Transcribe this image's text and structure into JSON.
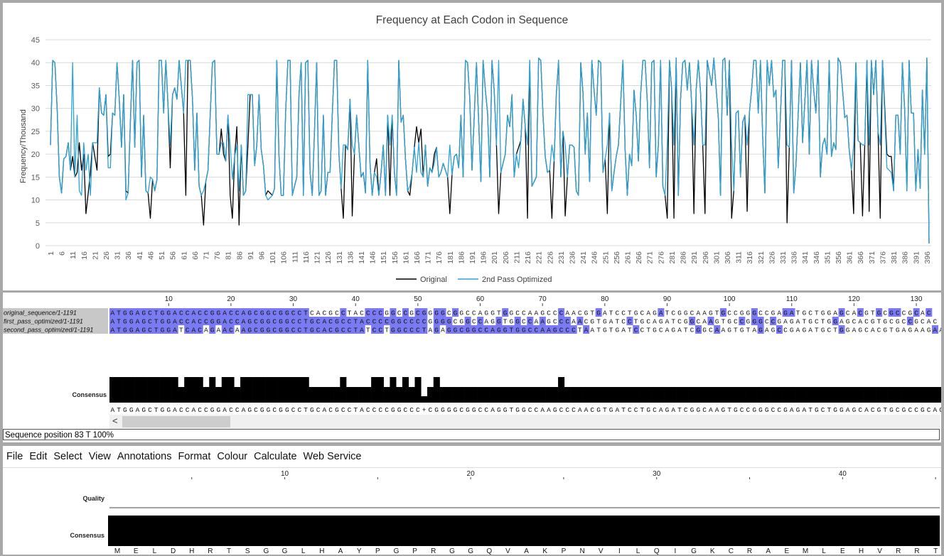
{
  "chart": {
    "title": "Frequency at Each Codon in Sequence",
    "ylabel": "Frequency/Thousand",
    "legend": [
      "Original",
      "2nd Pass Optimized"
    ],
    "colors": {
      "original": "#000000",
      "optimized": "#2ea3d6"
    }
  },
  "chart_data": {
    "type": "line",
    "title": "Frequency at Each Codon in Sequence",
    "xlabel": "",
    "ylabel": "Frequency/Thousand",
    "ylim": [
      0,
      45
    ],
    "yticks": [
      0,
      5,
      10,
      15,
      20,
      25,
      30,
      35,
      40,
      45
    ],
    "x_range": [
      1,
      397
    ],
    "x_tick_step": 5,
    "grid": "horizontal",
    "legend_position": "bottom",
    "series": [
      {
        "name": "Original",
        "color": "#000000",
        "values": [
          22,
          40.5,
          40,
          30,
          15,
          11.5,
          19,
          19.5,
          22.5,
          16.5,
          19.5,
          15,
          16,
          22.5,
          16.5,
          20,
          7,
          11.5,
          16,
          22.5,
          16.5,
          34.5,
          29,
          28.5,
          33,
          19.5,
          20,
          29,
          28.5,
          40,
          32,
          21.5,
          33,
          12,
          11.5,
          27,
          40.5,
          21.5,
          40,
          40.5,
          15,
          28.5,
          12,
          11.5,
          6,
          14.5,
          12,
          14.5,
          40.5,
          40.5,
          29,
          40.5,
          30.5,
          17,
          33,
          34.5,
          32,
          40.5,
          29,
          11,
          40.5,
          40.5,
          32,
          16.5,
          29,
          13,
          11,
          4.5,
          14,
          16.5,
          28.5,
          40,
          40.5,
          20,
          20,
          25.5,
          20,
          18.5,
          28.5,
          11,
          6,
          19.5,
          26,
          4.5,
          22,
          11,
          12,
          22,
          33,
          33,
          17.5,
          22,
          33,
          21,
          17.5,
          11,
          12,
          11,
          12.5,
          40.5,
          19.5,
          11,
          11,
          29,
          40.5,
          40.5,
          11,
          13,
          15,
          33,
          40,
          11,
          40,
          40.5,
          16,
          11,
          25,
          40,
          11,
          12,
          28.5,
          11,
          16,
          16,
          28.5,
          40.5,
          40.5,
          20,
          12.5,
          6,
          22,
          21,
          32,
          6.5,
          20,
          28.5,
          15,
          16,
          11.5,
          40.5,
          18,
          11,
          16,
          19,
          11,
          16,
          22,
          11,
          28.5,
          11,
          28.5,
          16,
          11,
          40.5,
          27,
          28.5,
          19,
          12,
          11,
          16,
          21.5,
          26,
          22.5,
          25.5,
          15,
          22,
          13,
          17,
          16,
          20,
          21.5,
          15,
          16,
          18,
          15,
          7,
          15.5,
          19.5,
          20,
          17,
          28.5,
          15,
          40.5,
          40,
          32,
          16.5,
          28.5,
          40,
          27,
          14,
          40.5,
          34,
          29,
          15,
          40.5,
          34,
          22,
          7,
          16,
          18,
          20,
          28.5,
          26,
          33,
          15,
          20,
          21.5,
          23,
          32,
          26,
          6,
          40.5,
          13,
          15,
          41,
          40.5,
          28.5,
          19.5,
          16,
          16.5,
          6,
          18.5,
          33,
          40.5,
          15,
          25,
          6.5,
          15,
          22,
          22,
          21.5,
          12,
          11,
          40,
          33.5,
          20,
          29,
          14,
          40.5,
          34,
          28.5,
          40.5,
          40,
          16,
          19,
          7,
          29,
          12,
          16,
          19.5,
          22,
          40.5,
          21,
          11,
          20,
          17.5,
          34,
          28.5,
          18.5,
          33,
          40.5,
          40.5,
          31.5,
          17,
          40,
          40.5,
          15,
          22,
          40.5,
          13,
          11,
          6,
          40.5,
          34,
          6,
          41,
          11,
          32,
          40,
          40.5,
          34,
          40,
          31,
          7,
          34,
          40.5,
          33.5,
          22,
          7,
          40.5,
          35,
          41,
          34.5,
          28,
          11,
          40.5,
          41,
          28.5,
          40.5,
          6,
          12,
          29,
          29.5,
          15,
          27,
          28.5,
          7.5,
          29,
          34,
          40.5,
          40.5,
          29,
          40.5,
          24,
          11.5,
          40.5,
          35,
          40.5,
          32.5,
          34,
          17,
          28.5,
          40.5,
          40.5,
          5,
          21.5,
          40.5,
          11.5,
          17.5,
          40,
          22.5,
          31.5,
          40.5,
          20,
          40.5,
          34,
          29,
          40.5,
          15,
          22,
          23.5,
          20,
          40.5,
          19.5,
          22.5,
          21,
          41,
          40,
          34,
          28,
          28.5,
          21,
          16.5,
          7,
          40,
          23,
          22.5,
          6.5,
          22,
          40.5,
          7.5,
          40.5,
          33,
          40.5,
          25,
          6,
          40.5,
          20,
          19.5,
          19.5,
          12,
          28.5,
          28.5,
          20,
          40,
          29.5,
          12,
          40.5,
          29,
          29,
          12,
          21,
          12.5,
          34,
          20,
          41,
          0.5
        ]
      },
      {
        "name": "2nd Pass Optimized",
        "color": "#2ea3d6",
        "values": [
          22,
          40.5,
          40,
          30,
          15,
          11.5,
          19,
          19.5,
          22.5,
          16.5,
          40,
          15,
          28.5,
          12,
          11,
          22.5,
          16.5,
          20,
          11,
          22.5,
          22.5,
          34.5,
          29,
          28.5,
          33,
          17,
          17,
          29,
          28.5,
          40,
          32,
          21.5,
          33,
          10,
          11.5,
          27,
          40.5,
          21.5,
          40,
          40.5,
          15,
          28.5,
          12,
          11.5,
          15,
          14.5,
          12,
          14.5,
          40.5,
          40.5,
          29,
          40.5,
          30.5,
          22,
          33,
          34.5,
          32,
          40.5,
          29,
          40.5,
          40.5,
          40.5,
          32,
          16.5,
          29,
          13,
          11,
          12,
          14,
          16.5,
          28.5,
          40,
          40.5,
          20,
          20,
          22.5,
          22.5,
          18.5,
          28.5,
          22,
          14.5,
          19.5,
          22,
          12,
          22,
          11,
          12,
          33,
          33,
          33,
          17.5,
          22,
          33,
          21,
          17.5,
          11,
          10,
          11,
          12.5,
          40.5,
          19.5,
          11,
          11,
          29,
          40.5,
          40.5,
          11,
          13,
          15,
          33,
          40,
          11,
          40,
          40.5,
          16,
          11,
          25,
          40,
          11,
          12,
          28.5,
          11,
          16,
          16,
          28.5,
          40.5,
          40.5,
          20,
          12.5,
          22,
          22,
          21,
          32,
          22,
          20,
          28.5,
          15,
          16,
          11.5,
          40.5,
          18,
          11,
          16,
          15,
          11,
          16,
          22,
          11,
          28.5,
          22,
          28.5,
          16,
          11,
          40.5,
          27,
          28.5,
          19,
          12,
          13,
          16,
          21.5,
          16,
          22.5,
          16,
          15,
          22,
          13,
          17,
          16,
          18,
          21.5,
          15,
          16,
          18,
          15,
          22,
          15.5,
          19.5,
          20,
          17,
          28.5,
          15,
          40.5,
          40,
          32,
          16.5,
          28.5,
          40,
          27,
          14,
          40.5,
          34,
          29,
          15,
          40.5,
          34,
          22,
          40.5,
          16,
          18,
          20,
          28.5,
          26,
          33,
          15,
          20,
          17,
          23,
          32,
          26,
          22,
          40.5,
          13,
          15,
          41,
          40.5,
          28.5,
          19.5,
          16,
          16.5,
          22,
          18.5,
          33,
          40.5,
          15,
          25,
          22,
          15,
          22,
          22,
          21.5,
          12,
          11,
          40,
          33.5,
          20,
          29,
          14,
          40.5,
          34,
          28.5,
          40.5,
          40,
          16,
          19,
          22,
          29,
          12,
          16,
          19.5,
          22,
          40.5,
          21,
          11,
          20,
          17.5,
          34,
          28.5,
          18.5,
          33,
          40.5,
          40.5,
          31.5,
          17,
          40,
          40.5,
          15,
          22,
          40.5,
          13,
          11,
          22,
          40.5,
          34,
          22,
          41,
          11,
          32,
          40,
          40.5,
          34,
          40,
          31,
          22,
          34,
          40.5,
          33.5,
          22,
          22,
          40.5,
          35,
          41,
          34.5,
          28,
          11,
          40.5,
          41,
          28.5,
          40.5,
          22,
          12,
          29,
          29.5,
          15,
          27,
          28.5,
          22,
          29,
          34,
          40.5,
          40.5,
          29,
          40.5,
          24,
          11.5,
          40.5,
          35,
          40.5,
          32.5,
          34,
          17,
          28.5,
          40.5,
          40.5,
          22,
          21.5,
          40.5,
          11.5,
          17.5,
          40,
          22.5,
          31.5,
          40.5,
          20,
          40.5,
          34,
          29,
          40.5,
          15,
          22,
          23.5,
          20,
          40.5,
          19.5,
          22.5,
          21,
          41,
          40,
          34,
          28,
          28.5,
          21,
          16.5,
          22,
          40,
          23,
          22.5,
          22,
          22,
          40.5,
          22,
          40.5,
          33,
          40.5,
          25,
          22,
          40.5,
          17,
          16.5,
          16,
          12,
          28.5,
          28.5,
          20,
          40,
          29.5,
          12,
          40.5,
          29,
          29,
          12,
          21,
          12.5,
          34,
          20,
          41,
          0.5
        ]
      }
    ]
  },
  "alignment": {
    "ruler_ticks": [
      "10",
      "20",
      "30",
      "40",
      "50",
      "60",
      "70",
      "80",
      "90",
      "100",
      "110",
      "120",
      "130"
    ],
    "rows": [
      {
        "name": "original_sequence/1-1191",
        "seq": "ATGGAGCTGGACCACCGGACCAGCGGCGGCCTCACGCCTACCCCGGCCGCGGGGCGGCCAGGTGGCCAAGCCCAACGTGATCCTGCAGATCGGCAAGTGCCGGGCCGAGATGCTGGAGCACGTGCGCCGCAC"
      },
      {
        "name": "first_pass_optimized/1-1191",
        "seq": "ATGGAGCTGGACCACCGGACCAGCGGCGGCCTGCACGCCTACCCCGGCCCCGGGGCGGCCAGGTGGCCAAGCCCAACGTGATCCTGCAGATCGGCAAGTGCCGGGCCGAGATGCTGGAGCACGTGCGCCGCAC"
      },
      {
        "name": "second_pass_optimized/1-1191",
        "seq": "ATGGAGCTGGATCACAGAACAAGCGGCGGCCTGCACGCCTATCCTGGCCCTAGAGGCGGCCAGGTGGCCAAGCCCTAATGTGATCCTGCAGATCGGCAAGTGTAGAGCCGAGATGCTGGAGCACGTGAGAAGAAC"
      }
    ],
    "consensus_label": "Consensus",
    "consensus_seq": "ATGGAGCTGGACCACCGGACCAGCGGCGGCCTGCACGCCTACCCCGGCCC+CGGGGCGGCCAGGTGGCCAAGCCCAACGTGATCCTGCAGATCGGCAAGTGCCGGGCCGAGATGCTGGAGCACGTGCGCCGCAC",
    "scroll_left": "<",
    "status": "Sequence position 83  T 100%",
    "colors": {
      "identity": "#7a7af2",
      "label_bg": "#c8c8c8"
    }
  },
  "protein_panel": {
    "menu": [
      "File",
      "Edit",
      "Select",
      "View",
      "Annotations",
      "Format",
      "Colour",
      "Calculate",
      "Web Service"
    ],
    "ruler_ticks": [
      "10",
      "20",
      "30",
      "40"
    ],
    "quality_label": "Quality",
    "consensus_label": "Consensus",
    "residues": [
      "M",
      "E",
      "L",
      "D",
      "H",
      "R",
      "T",
      "S",
      "G",
      "G",
      "L",
      "H",
      "A",
      "Y",
      "P",
      "G",
      "P",
      "R",
      "G",
      "G",
      "Q",
      "V",
      "A",
      "K",
      "P",
      "N",
      "V",
      "I",
      "L",
      "Q",
      "I",
      "G",
      "K",
      "C",
      "R",
      "A",
      "E",
      "M",
      "L",
      "E",
      "H",
      "V",
      "R",
      "R",
      "T"
    ]
  }
}
